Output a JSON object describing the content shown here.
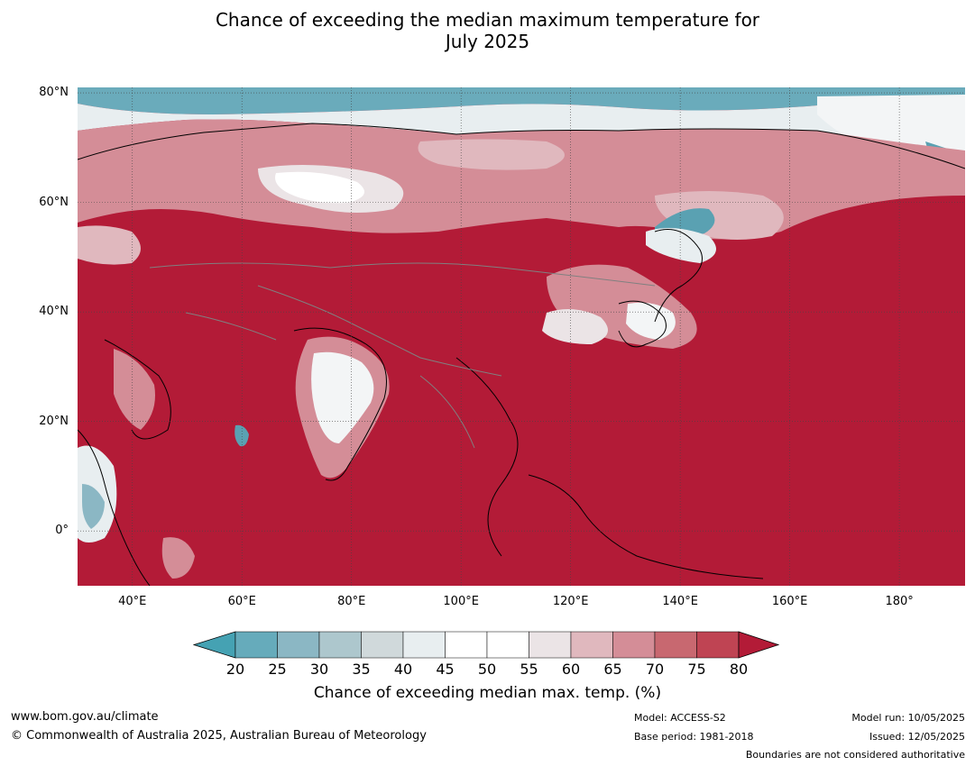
{
  "title": {
    "line1": "Chance of exceeding the median maximum temperature for",
    "line2": "July 2025"
  },
  "map": {
    "projection": "equirectangular",
    "lon_range": [
      30,
      192
    ],
    "lat_range": [
      -10,
      81
    ],
    "lat_ticks": [
      {
        "value": 80,
        "label": "80°N"
      },
      {
        "value": 60,
        "label": "60°N"
      },
      {
        "value": 40,
        "label": "40°N"
      },
      {
        "value": 20,
        "label": "20°N"
      },
      {
        "value": 0,
        "label": "0°"
      }
    ],
    "lon_ticks": [
      {
        "value": 40,
        "label": "40°E"
      },
      {
        "value": 60,
        "label": "60°E"
      },
      {
        "value": 80,
        "label": "80°E"
      },
      {
        "value": 100,
        "label": "100°E"
      },
      {
        "value": 120,
        "label": "120°E"
      },
      {
        "value": 140,
        "label": "140°E"
      },
      {
        "value": 160,
        "label": "160°E"
      },
      {
        "value": 180,
        "label": "180°"
      }
    ],
    "gridlines": true,
    "colors": {
      "ocean_default": "#b31b37",
      "coastline": "#000000",
      "border": "#808080"
    }
  },
  "colorbar": {
    "ticks": [
      "20",
      "25",
      "30",
      "35",
      "40",
      "45",
      "50",
      "55",
      "60",
      "65",
      "70",
      "75",
      "80"
    ],
    "under_color": "#45a2b3",
    "over_color": "#b31b37",
    "colors": [
      "#66abbb",
      "#8bb7c4",
      "#adc7cd",
      "#d0d9db",
      "#e8eef0",
      "#ffffff",
      "#ffffff",
      "#ebe4e6",
      "#e0b8be",
      "#d48d97",
      "#c86870",
      "#bf4453"
    ],
    "label": "Chance of exceeding median max. temp. (%)"
  },
  "footer": {
    "url": "www.bom.gov.au/climate",
    "copyright": "© Commonwealth of Australia 2025, Australian Bureau of Meteorology",
    "model": "Model: ACCESS-S2",
    "base_period": "Base period: 1981-2018",
    "model_run": "Model run: 10/05/2025",
    "issued": "Issued: 12/05/2025",
    "disclaimer": "Boundaries are not considered authoritative"
  }
}
